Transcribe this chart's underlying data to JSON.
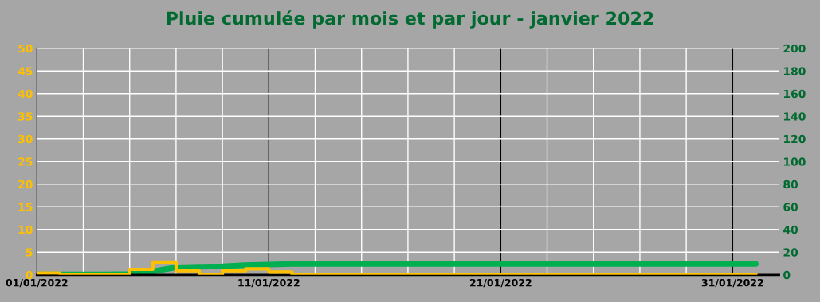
{
  "chart_data": {
    "type": "line",
    "title": "Pluie cumulée par mois et par jour - janvier 2022",
    "x": [
      "2022-01-01",
      "2022-01-02",
      "2022-01-03",
      "2022-01-04",
      "2022-01-05",
      "2022-01-06",
      "2022-01-07",
      "2022-01-08",
      "2022-01-09",
      "2022-01-10",
      "2022-01-11",
      "2022-01-12",
      "2022-01-13",
      "2022-01-14",
      "2022-01-15",
      "2022-01-16",
      "2022-01-17",
      "2022-01-18",
      "2022-01-19",
      "2022-01-20",
      "2022-01-21",
      "2022-01-22",
      "2022-01-23",
      "2022-01-24",
      "2022-01-25",
      "2022-01-26",
      "2022-01-27",
      "2022-01-28",
      "2022-01-29",
      "2022-01-30",
      "2022-01-31",
      "2022-02-01"
    ],
    "series": [
      {
        "type": "step",
        "color": "#ffc000",
        "values": [
          0.4,
          0,
          0,
          0,
          1.2,
          2.8,
          0.9,
          0,
          0.9,
          1.3,
          0.6,
          0,
          0,
          0,
          0,
          0,
          0,
          0,
          0,
          0,
          0,
          0,
          0,
          0,
          0,
          0,
          0,
          0,
          0,
          0,
          0,
          0
        ]
      },
      {
        "axis": "y2",
        "color": "#00b050",
        "values": [
          0.4,
          0.4,
          0.4,
          0.4,
          0.8,
          3.0,
          6.5,
          7.0,
          7.5,
          8.5,
          9.0,
          9.5,
          9.5,
          9.5,
          9.5,
          9.5,
          9.5,
          9.5,
          9.5,
          9.5,
          9.5,
          9.5,
          9.5,
          9.5,
          9.5,
          9.5,
          9.5,
          9.5,
          9.5,
          9.5,
          9.5,
          9.5
        ]
      }
    ],
    "xlim": [
      "2022-01-01",
      "2022-02-02"
    ],
    "xticks": [
      {
        "value": "2022-01-01",
        "label": "01/01/2022"
      },
      {
        "value": "2022-01-03",
        "label": null
      },
      {
        "value": "2022-01-05",
        "label": null
      },
      {
        "value": "2022-01-07",
        "label": null
      },
      {
        "value": "2022-01-09",
        "label": null
      },
      {
        "value": "2022-01-11",
        "label": "11/01/2022"
      },
      {
        "value": "2022-01-13",
        "label": null
      },
      {
        "value": "2022-01-15",
        "label": null
      },
      {
        "value": "2022-01-17",
        "label": null
      },
      {
        "value": "2022-01-19",
        "label": null
      },
      {
        "value": "2022-01-21",
        "label": "21/01/2022"
      },
      {
        "value": "2022-01-23",
        "label": null
      },
      {
        "value": "2022-01-25",
        "label": null
      },
      {
        "value": "2022-01-27",
        "label": null
      },
      {
        "value": "2022-01-29",
        "label": null
      },
      {
        "value": "2022-01-31",
        "label": "31/01/2022"
      }
    ],
    "ylim": [
      0,
      50
    ],
    "yticks": [
      0,
      5,
      10,
      15,
      20,
      25,
      30,
      35,
      40,
      45,
      50
    ],
    "y2lim": [
      0,
      200
    ],
    "y2ticks": [
      0,
      20,
      40,
      60,
      80,
      100,
      120,
      140,
      160,
      180,
      200
    ],
    "grid": true
  }
}
